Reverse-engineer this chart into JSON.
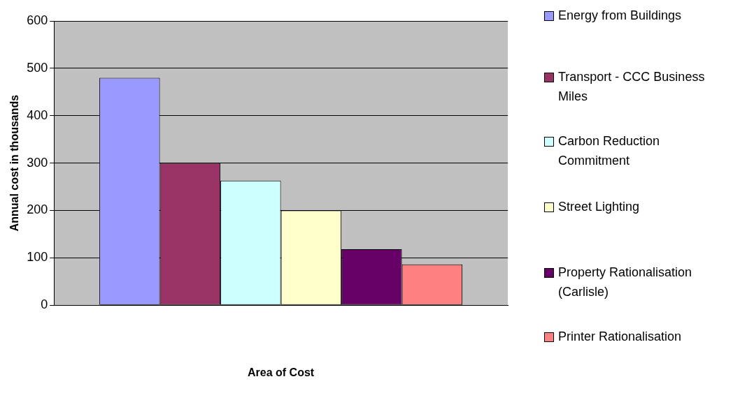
{
  "chart_data": {
    "type": "bar",
    "xlabel": "Area of Cost",
    "ylabel": "Annual cost in thousands",
    "categories": [
      null
    ],
    "series": [
      {
        "name": "Energy from Buildings",
        "color": "#9999ff",
        "values": [
          480
        ]
      },
      {
        "name": "Transport - CCC Business Miles",
        "color": "#993366",
        "values": [
          300
        ]
      },
      {
        "name": "Carbon Reduction Commitment",
        "color": "#ccffff",
        "values": [
          263
        ]
      },
      {
        "name": "Street Lighting",
        "color": "#ffffcc",
        "values": [
          200
        ]
      },
      {
        "name": "Property Rationalisation (Carlisle)",
        "color": "#660066",
        "values": [
          118
        ]
      },
      {
        "name": "Printer Rationalisation",
        "color": "#ff8080",
        "values": [
          86
        ]
      }
    ],
    "ylim": [
      0,
      600
    ],
    "yticks": [
      0,
      100,
      200,
      300,
      400,
      500,
      600
    ],
    "grid": "y",
    "legend": "right"
  }
}
